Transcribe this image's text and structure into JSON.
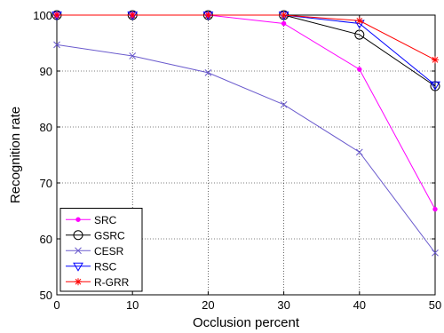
{
  "chart_data": {
    "type": "line",
    "title": "",
    "xlabel": "Occlusion percent",
    "ylabel": "Recognition rate",
    "xlim": [
      0,
      50
    ],
    "ylim": [
      50,
      100
    ],
    "xticks": [
      0,
      10,
      20,
      30,
      40,
      50
    ],
    "yticks": [
      50,
      60,
      70,
      80,
      90,
      100
    ],
    "grid": true,
    "legend_position": "lower-left",
    "x": [
      0,
      10,
      20,
      30,
      40,
      50
    ],
    "series": [
      {
        "name": "SRC",
        "values": [
          100,
          100,
          100,
          98.5,
          90.3,
          65.3
        ],
        "color": "#ff00ff",
        "marker": "dot"
      },
      {
        "name": "GSRC",
        "values": [
          100,
          100,
          100,
          100,
          96.5,
          87.3
        ],
        "color": "#000000",
        "marker": "circle"
      },
      {
        "name": "CESR",
        "values": [
          94.7,
          92.7,
          89.7,
          84.0,
          75.5,
          57.5
        ],
        "color": "#6a5acd",
        "marker": "x"
      },
      {
        "name": "RSC",
        "values": [
          100,
          100,
          100,
          100,
          98.5,
          87.5
        ],
        "color": "#0000ff",
        "marker": "triangle-down"
      },
      {
        "name": "R-GRR",
        "values": [
          100,
          100,
          100,
          100,
          99.0,
          92.0
        ],
        "color": "#ff0000",
        "marker": "star"
      }
    ]
  }
}
